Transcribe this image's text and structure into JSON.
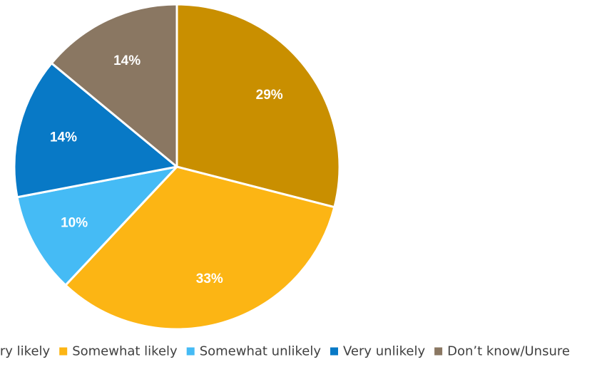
{
  "chart_data": {
    "type": "pie",
    "title": "",
    "legend_position": "bottom",
    "slices": [
      {
        "label": "Very likely",
        "value": 29,
        "display": "29%",
        "color": "#C98F00"
      },
      {
        "label": "Somewhat likely",
        "value": 33,
        "display": "33%",
        "color": "#FCB514"
      },
      {
        "label": "Somewhat unlikely",
        "value": 10,
        "display": "10%",
        "color": "#45BBF5"
      },
      {
        "label": "Very unlikely",
        "value": 14,
        "display": "14%",
        "color": "#0879C6"
      },
      {
        "label": "Don’t know/Unsure",
        "value": 14,
        "display": "14%",
        "color": "#8A7762"
      }
    ]
  }
}
